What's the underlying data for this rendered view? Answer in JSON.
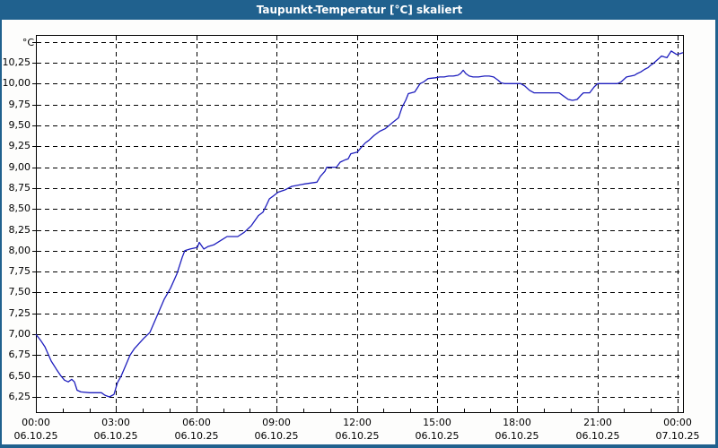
{
  "window": {
    "title": "Taupunkt-Temperatur [°C] skaliert"
  },
  "colors": {
    "titlebar": "#20618e",
    "page_border": "#20618e",
    "series_line": "#1e1ebe",
    "grid": "#000000",
    "plot_background": "#ffffff",
    "page_background": "#fdfdfc",
    "label_text": "#000000"
  },
  "chart_data": {
    "type": "line",
    "title": "Taupunkt-Temperatur [°C] skaliert",
    "y_unit_label": "°C",
    "xlabel": "",
    "ylabel": "°C",
    "grid": "dashed, both axes",
    "legend_position": "none",
    "ylim": [
      6.07,
      10.58
    ],
    "xlim_hours": [
      0,
      24.2
    ],
    "y_ticks": [
      {
        "v": 10.25,
        "label": "10,25"
      },
      {
        "v": 10.0,
        "label": "10,00"
      },
      {
        "v": 9.75,
        "label": "9,75"
      },
      {
        "v": 9.5,
        "label": "9,50"
      },
      {
        "v": 9.25,
        "label": "9,25"
      },
      {
        "v": 9.0,
        "label": "9,00"
      },
      {
        "v": 8.75,
        "label": "8,75"
      },
      {
        "v": 8.5,
        "label": "8,50"
      },
      {
        "v": 8.25,
        "label": "8,25"
      },
      {
        "v": 8.0,
        "label": "8,00"
      },
      {
        "v": 7.75,
        "label": "7,75"
      },
      {
        "v": 7.5,
        "label": "7,50"
      },
      {
        "v": 7.25,
        "label": "7,25"
      },
      {
        "v": 7.0,
        "label": "7,00"
      },
      {
        "v": 6.75,
        "label": "6,75"
      },
      {
        "v": 6.5,
        "label": "6,50"
      },
      {
        "v": 6.25,
        "label": "6,25"
      }
    ],
    "y_grid_extra": [
      10.5
    ],
    "x_ticks": [
      {
        "h": 0,
        "time": "00:00",
        "date": "06.10.25"
      },
      {
        "h": 3,
        "time": "03:00",
        "date": "06.10.25"
      },
      {
        "h": 6,
        "time": "06:00",
        "date": "06.10.25"
      },
      {
        "h": 9,
        "time": "09:00",
        "date": "06.10.25"
      },
      {
        "h": 12,
        "time": "12:00",
        "date": "06.10.25"
      },
      {
        "h": 15,
        "time": "15:00",
        "date": "06.10.25"
      },
      {
        "h": 18,
        "time": "18:00",
        "date": "06.10.25"
      },
      {
        "h": 21,
        "time": "21:00",
        "date": "06.10.25"
      },
      {
        "h": 24,
        "time": "00:00",
        "date": "07.10.25"
      }
    ],
    "minor_x_tick_step_hours": 1,
    "series": [
      {
        "name": "Taupunkt-Temperatur",
        "color": "#1e1ebe",
        "points": [
          [
            0.0,
            7.0
          ],
          [
            0.17,
            6.93
          ],
          [
            0.34,
            6.85
          ],
          [
            0.57,
            6.68
          ],
          [
            0.77,
            6.58
          ],
          [
            0.94,
            6.5
          ],
          [
            1.07,
            6.45
          ],
          [
            1.21,
            6.43
          ],
          [
            1.34,
            6.46
          ],
          [
            1.44,
            6.43
          ],
          [
            1.54,
            6.33
          ],
          [
            1.68,
            6.31
          ],
          [
            2.01,
            6.3
          ],
          [
            2.45,
            6.3
          ],
          [
            2.58,
            6.27
          ],
          [
            2.75,
            6.25
          ],
          [
            2.92,
            6.28
          ],
          [
            3.05,
            6.42
          ],
          [
            3.19,
            6.5
          ],
          [
            3.52,
            6.75
          ],
          [
            3.69,
            6.83
          ],
          [
            4.03,
            6.95
          ],
          [
            4.26,
            7.02
          ],
          [
            4.53,
            7.22
          ],
          [
            4.8,
            7.42
          ],
          [
            5.03,
            7.55
          ],
          [
            5.27,
            7.72
          ],
          [
            5.47,
            7.92
          ],
          [
            5.57,
            8.0
          ],
          [
            5.77,
            8.02
          ],
          [
            6.04,
            8.04
          ],
          [
            6.11,
            8.1
          ],
          [
            6.28,
            8.02
          ],
          [
            6.44,
            8.05
          ],
          [
            6.65,
            8.07
          ],
          [
            6.95,
            8.13
          ],
          [
            7.15,
            8.17
          ],
          [
            7.55,
            8.17
          ],
          [
            7.79,
            8.22
          ],
          [
            8.06,
            8.3
          ],
          [
            8.32,
            8.42
          ],
          [
            8.49,
            8.46
          ],
          [
            8.63,
            8.55
          ],
          [
            8.73,
            8.62
          ],
          [
            8.9,
            8.66
          ],
          [
            9.06,
            8.7
          ],
          [
            9.33,
            8.73
          ],
          [
            9.57,
            8.77
          ],
          [
            9.9,
            8.79
          ],
          [
            10.07,
            8.8
          ],
          [
            10.51,
            8.82
          ],
          [
            10.64,
            8.89
          ],
          [
            10.81,
            8.95
          ],
          [
            10.88,
            9.0
          ],
          [
            11.24,
            9.0
          ],
          [
            11.38,
            9.06
          ],
          [
            11.58,
            9.09
          ],
          [
            11.68,
            9.1
          ],
          [
            11.78,
            9.16
          ],
          [
            12.02,
            9.18
          ],
          [
            12.15,
            9.23
          ],
          [
            12.32,
            9.29
          ],
          [
            12.45,
            9.32
          ],
          [
            12.65,
            9.38
          ],
          [
            12.86,
            9.43
          ],
          [
            13.06,
            9.46
          ],
          [
            13.36,
            9.54
          ],
          [
            13.56,
            9.59
          ],
          [
            13.7,
            9.72
          ],
          [
            13.83,
            9.8
          ],
          [
            13.93,
            9.88
          ],
          [
            14.17,
            9.9
          ],
          [
            14.27,
            9.95
          ],
          [
            14.37,
            10.0
          ],
          [
            14.5,
            10.02
          ],
          [
            14.67,
            10.06
          ],
          [
            14.94,
            10.07
          ],
          [
            15.1,
            10.08
          ],
          [
            15.27,
            10.08
          ],
          [
            15.44,
            10.09
          ],
          [
            15.61,
            10.09
          ],
          [
            15.78,
            10.1
          ],
          [
            15.88,
            10.12
          ],
          [
            15.98,
            10.16
          ],
          [
            16.08,
            10.12
          ],
          [
            16.21,
            10.09
          ],
          [
            16.35,
            10.08
          ],
          [
            16.55,
            10.08
          ],
          [
            16.78,
            10.09
          ],
          [
            16.95,
            10.09
          ],
          [
            17.12,
            10.08
          ],
          [
            17.29,
            10.04
          ],
          [
            17.39,
            10.01
          ],
          [
            17.52,
            10.0
          ],
          [
            17.79,
            10.0
          ],
          [
            18.13,
            10.0
          ],
          [
            18.29,
            9.97
          ],
          [
            18.46,
            9.92
          ],
          [
            18.63,
            9.89
          ],
          [
            18.97,
            9.89
          ],
          [
            19.3,
            9.89
          ],
          [
            19.57,
            9.89
          ],
          [
            19.74,
            9.85
          ],
          [
            19.91,
            9.81
          ],
          [
            20.07,
            9.8
          ],
          [
            20.24,
            9.81
          ],
          [
            20.38,
            9.86
          ],
          [
            20.48,
            9.89
          ],
          [
            20.71,
            9.89
          ],
          [
            20.88,
            9.96
          ],
          [
            21.01,
            10.0
          ],
          [
            21.21,
            10.0
          ],
          [
            21.48,
            10.0
          ],
          [
            21.75,
            10.0
          ],
          [
            21.89,
            10.02
          ],
          [
            21.99,
            10.05
          ],
          [
            22.09,
            10.08
          ],
          [
            22.25,
            10.09
          ],
          [
            22.39,
            10.1
          ],
          [
            22.49,
            10.12
          ],
          [
            22.62,
            10.14
          ],
          [
            22.76,
            10.17
          ],
          [
            22.89,
            10.19
          ],
          [
            22.99,
            10.22
          ],
          [
            23.09,
            10.24
          ],
          [
            23.19,
            10.27
          ],
          [
            23.3,
            10.3
          ],
          [
            23.4,
            10.33
          ],
          [
            23.5,
            10.32
          ],
          [
            23.6,
            10.31
          ],
          [
            23.7,
            10.36
          ],
          [
            23.76,
            10.39
          ],
          [
            23.86,
            10.37
          ],
          [
            23.96,
            10.35
          ],
          [
            24.1,
            10.36
          ],
          [
            24.2,
            10.37
          ]
        ]
      }
    ]
  }
}
